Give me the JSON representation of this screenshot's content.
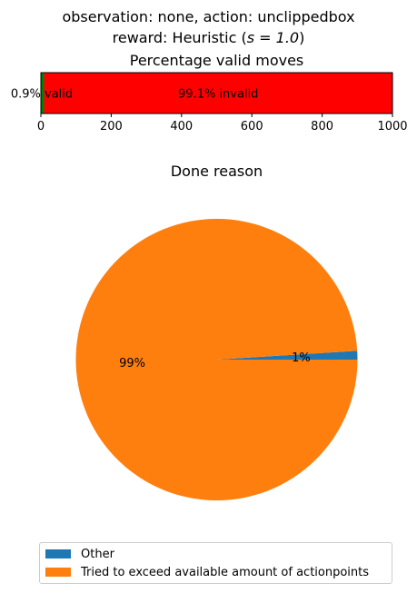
{
  "figure": {
    "suptitle_line1": "observation: none, action: unclippedbox",
    "suptitle_line2_prefix": "reward: Heuristic (",
    "suptitle_line2_math": "s = 1.0",
    "suptitle_line2_suffix": ")"
  },
  "chart_data": [
    {
      "type": "bar",
      "orientation": "horizontal-stacked",
      "title": "Percentage valid moves",
      "xlim": [
        0,
        1000
      ],
      "x_ticks": [
        0,
        200,
        400,
        600,
        800,
        1000
      ],
      "segments": [
        {
          "name": "valid",
          "value": 9,
          "label": "0.9% valid",
          "color": "#008000"
        },
        {
          "name": "invalid",
          "value": 991,
          "label": "99.1% invalid",
          "color": "#ff0000"
        }
      ]
    },
    {
      "type": "pie",
      "title": "Done reason",
      "slices": [
        {
          "label": "Other",
          "value": 1,
          "pct_label": "1%",
          "color": "#1f77b4"
        },
        {
          "label": "Tried to exceed available amount of actionpoints",
          "value": 99,
          "pct_label": "99%",
          "color": "#ff7f0e"
        }
      ],
      "legend_position": "bottom"
    }
  ]
}
